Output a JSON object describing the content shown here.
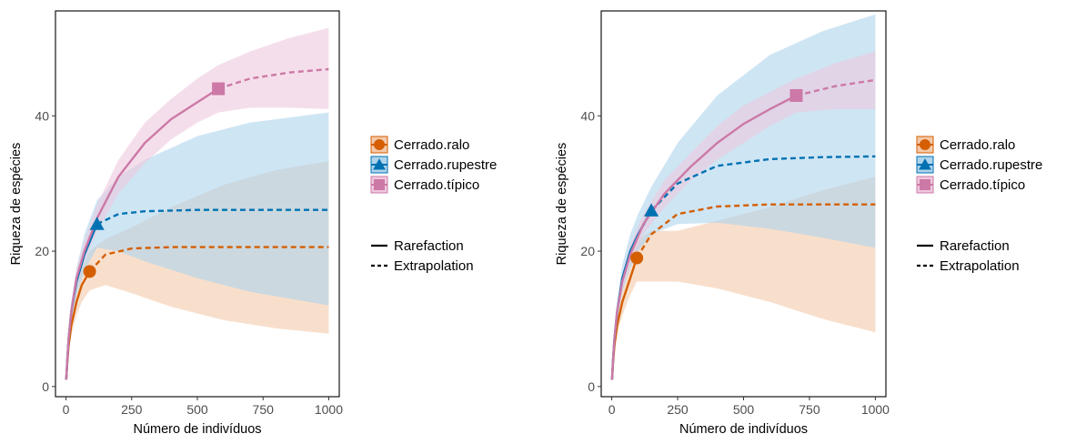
{
  "colors": {
    "ralo": "#D55E00",
    "rupestre": "#0072B2",
    "tipico": "#CC79A7",
    "ralo_band": "#F3C9AA",
    "rupestre_band": "#AED3EC",
    "tipico_band": "#EFC8DD",
    "axis_text": "#4D4D4D"
  },
  "legend": {
    "assemblages": [
      {
        "key": "ralo",
        "label": "Cerrado.ralo",
        "shape": "circle"
      },
      {
        "key": "rupestre",
        "label": "Cerrado.rupestre",
        "shape": "triangle"
      },
      {
        "key": "tipico",
        "label": "Cerrado.típico",
        "shape": "square"
      }
    ],
    "methods": [
      {
        "key": "rare",
        "label": "Rarefaction",
        "dash": false
      },
      {
        "key": "extra",
        "label": "Extrapolation",
        "dash": true
      }
    ]
  },
  "chart_data": [
    {
      "type": "line",
      "xlabel": "Número de indivíduos",
      "ylabel": "Riqueza de espécies",
      "xlim": [
        -40,
        1040
      ],
      "ylim": [
        -1.5,
        55.5
      ],
      "xticks": [
        0,
        250,
        500,
        750,
        1000
      ],
      "yticks": [
        0,
        20,
        40
      ],
      "grid": false,
      "legend_position": "right",
      "series": [
        {
          "key": "ralo",
          "name": "Cerrado.ralo",
          "observed": [
            90,
            17
          ],
          "x": [
            1,
            5,
            10,
            20,
            40,
            60,
            90,
            150,
            250,
            400,
            600,
            800,
            1000
          ],
          "y": [
            1,
            3.5,
            6,
            9,
            12.5,
            15,
            17,
            19.5,
            20.4,
            20.6,
            20.6,
            20.6,
            20.6
          ],
          "lo": [
            1,
            3,
            5,
            7.5,
            10.5,
            12.5,
            14.2,
            15,
            13.8,
            11.8,
            9.8,
            8.6,
            7.8
          ],
          "hi": [
            1,
            4,
            7,
            10.5,
            14.5,
            17.5,
            20,
            21.8,
            23.5,
            26.5,
            29.8,
            32,
            33.3
          ]
        },
        {
          "key": "rupestre",
          "name": "Cerrado.rupestre",
          "observed": [
            118,
            24
          ],
          "x": [
            1,
            5,
            10,
            20,
            40,
            70,
            118,
            200,
            300,
            500,
            700,
            1000
          ],
          "y": [
            1,
            4,
            7,
            11,
            15.5,
            19.5,
            24,
            25.5,
            25.9,
            26.1,
            26.1,
            26.1
          ],
          "lo": [
            1,
            3.5,
            6,
            9.5,
            13.5,
            17,
            20.5,
            20,
            18.5,
            16,
            14,
            12
          ],
          "hi": [
            1,
            4.5,
            8,
            12.5,
            17.5,
            22.5,
            27.5,
            31,
            33.5,
            37,
            39,
            40.5
          ]
        },
        {
          "key": "tipico",
          "name": "Cerrado.típico",
          "observed": [
            580,
            44
          ],
          "x": [
            1,
            5,
            10,
            20,
            40,
            70,
            120,
            200,
            300,
            400,
            500,
            580,
            700,
            850,
            1000
          ],
          "y": [
            1,
            4,
            7,
            11,
            16,
            20,
            25,
            31,
            36,
            39.5,
            42,
            44,
            45.5,
            46.4,
            46.9
          ],
          "lo": [
            1,
            3.5,
            6,
            10,
            14.5,
            18.5,
            23,
            28.5,
            33,
            36.5,
            39,
            40.5,
            41.2,
            41.2,
            41
          ],
          "hi": [
            1,
            4.5,
            8,
            12,
            17.5,
            21.5,
            27,
            33.5,
            39,
            42.5,
            45.5,
            47.5,
            49.5,
            51.5,
            53
          ]
        }
      ]
    },
    {
      "type": "line",
      "xlabel": "Número de indivíduos",
      "ylabel": "Riqueza de espécies",
      "xlim": [
        -40,
        1040
      ],
      "ylim": [
        -1.5,
        55.5
      ],
      "xticks": [
        0,
        250,
        500,
        750,
        1000
      ],
      "yticks": [
        0,
        20,
        40
      ],
      "grid": false,
      "legend_position": "right",
      "series": [
        {
          "key": "ralo",
          "name": "Cerrado.ralo",
          "observed": [
            95,
            19
          ],
          "x": [
            1,
            5,
            10,
            20,
            40,
            70,
            95,
            150,
            250,
            400,
            600,
            800,
            1000
          ],
          "y": [
            1,
            3.5,
            6,
            9,
            12.5,
            16,
            19,
            22.5,
            25.5,
            26.6,
            26.9,
            26.9,
            26.9
          ],
          "lo": [
            1,
            3,
            5,
            7.5,
            10.5,
            13.5,
            15.5,
            15.5,
            15.5,
            14.5,
            12.5,
            10,
            8
          ],
          "hi": [
            1,
            4,
            7,
            10.5,
            14.5,
            18.5,
            21.5,
            23,
            23,
            24.5,
            26.5,
            29,
            31
          ]
        },
        {
          "key": "rupestre",
          "name": "Cerrado.rupestre",
          "observed": [
            150,
            26
          ],
          "x": [
            1,
            5,
            10,
            20,
            40,
            70,
            100,
            150,
            250,
            400,
            600,
            800,
            1000
          ],
          "y": [
            1,
            4,
            7,
            11,
            16,
            20,
            22.5,
            26,
            30,
            32.6,
            33.6,
            33.9,
            34
          ],
          "lo": [
            1,
            3.5,
            6,
            9.5,
            14,
            17.5,
            20,
            22.5,
            24,
            24.2,
            23.3,
            22,
            20.5
          ],
          "hi": [
            1,
            4.5,
            8,
            12.5,
            18,
            22.5,
            25.5,
            29.5,
            36,
            43,
            49,
            52.5,
            55
          ]
        },
        {
          "key": "tipico",
          "name": "Cerrado.típico",
          "observed": [
            700,
            43
          ],
          "x": [
            1,
            5,
            10,
            20,
            40,
            70,
            120,
            200,
            300,
            400,
            500,
            600,
            700,
            850,
            1000
          ],
          "y": [
            1,
            4,
            7,
            11,
            15.5,
            19.5,
            24,
            28.5,
            32.5,
            36,
            38.8,
            41,
            43,
            44.4,
            45.3
          ],
          "lo": [
            1,
            3.5,
            6,
            10,
            14.5,
            18,
            22.5,
            26.5,
            30.5,
            33.5,
            36,
            38.5,
            40.5,
            41,
            41
          ],
          "hi": [
            1,
            4.5,
            8,
            12,
            16.5,
            21,
            25.5,
            30.5,
            34.5,
            38.5,
            41.5,
            43.5,
            45.5,
            47.8,
            49.5
          ]
        }
      ]
    }
  ]
}
